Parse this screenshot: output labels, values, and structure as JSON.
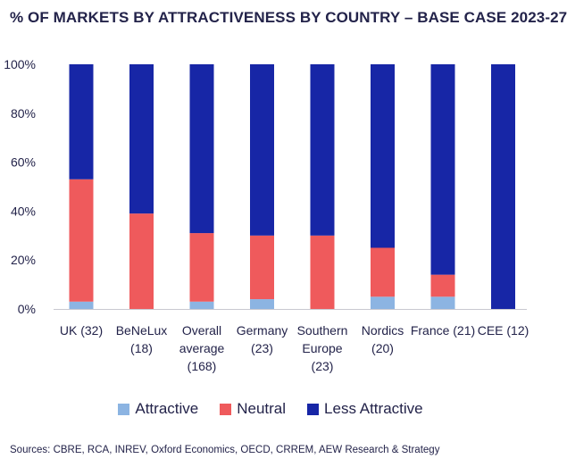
{
  "title": "% OF MARKETS BY ATTRACTIVENESS BY COUNTRY – BASE CASE 2023-27",
  "source": "Sources: CBRE, RCA, INREV, Oxford Economics, OECD, CRREM, AEW Research & Strategy",
  "colors": {
    "Attractive": "#8cb4e2",
    "Neutral": "#ef5a5c",
    "Less Attractive": "#1726a6"
  },
  "chart_data": {
    "type": "bar",
    "stacked": true,
    "title": "% OF MARKETS BY ATTRACTIVENESS BY COUNTRY – BASE CASE 2023-27",
    "categories": [
      [
        "UK (32)"
      ],
      [
        "BeNeLux",
        "(18)"
      ],
      [
        "Overall",
        "average",
        "(168)"
      ],
      [
        "Germany",
        "(23)"
      ],
      [
        "Southern",
        "Europe",
        "(23)"
      ],
      [
        "Nordics",
        "(20)"
      ],
      [
        "France (21)"
      ],
      [
        "CEE (12)"
      ]
    ],
    "series": [
      {
        "name": "Attractive",
        "values": [
          3,
          0,
          3,
          4,
          0,
          5,
          5,
          0
        ]
      },
      {
        "name": "Neutral",
        "values": [
          50,
          39,
          28,
          26,
          30,
          20,
          9,
          0
        ]
      },
      {
        "name": "Less Attractive",
        "values": [
          47,
          61,
          69,
          70,
          70,
          75,
          86,
          100
        ]
      }
    ],
    "yticks": [
      "0%",
      "20%",
      "40%",
      "60%",
      "80%",
      "100%"
    ],
    "ylim": [
      0,
      100
    ],
    "grid": false,
    "legend_position": "bottom"
  }
}
